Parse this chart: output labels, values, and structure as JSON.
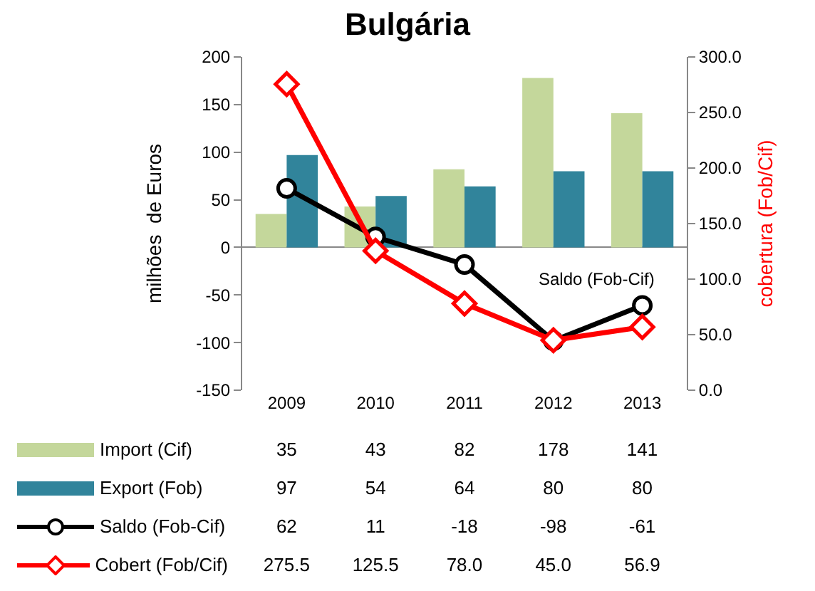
{
  "chart_data": {
    "type": "bar",
    "title": "Bulgária",
    "ylabel": "milhões  de Euros",
    "y2label": "cobertura (Fob/Cif)",
    "categories": [
      "2009",
      "2010",
      "2011",
      "2012",
      "2013"
    ],
    "series": [
      {
        "name": "Import (Cif)",
        "color": "#c4d79b",
        "values": [
          35,
          43,
          82,
          178,
          141
        ],
        "value_labels": [
          "35",
          "43",
          "82",
          "178",
          "141"
        ]
      },
      {
        "name": "Export (Fob)",
        "color": "#31849b",
        "values": [
          97,
          54,
          64,
          80,
          80
        ],
        "value_labels": [
          "97",
          "54",
          "64",
          "80",
          "80"
        ]
      },
      {
        "name": "Saldo (Fob-Cif)",
        "type": "line",
        "color": "#000000",
        "marker": "circle",
        "values": [
          62,
          11,
          -18,
          -98,
          -61
        ],
        "value_labels": [
          "62",
          "11",
          "-18",
          "-98",
          "-61"
        ]
      },
      {
        "name": "Cobert (Fob/Cif)",
        "type": "line",
        "axis": "y2",
        "color": "#ff0000",
        "marker": "diamond",
        "values": [
          275.5,
          125.5,
          78.0,
          45.0,
          56.9
        ],
        "value_labels": [
          "275.5",
          "125.5",
          "78.0",
          "45.0",
          "56.9"
        ]
      }
    ],
    "ylim": [
      -150,
      200
    ],
    "yticks": [
      -150,
      -100,
      -50,
      0,
      50,
      100,
      150,
      200
    ],
    "y2lim": [
      0,
      300
    ],
    "y2ticks": [
      {
        "value": 0,
        "label": "0.0"
      },
      {
        "value": 50,
        "label": "50.0"
      },
      {
        "value": 100,
        "label": "100.0"
      },
      {
        "value": 150,
        "label": "150.0"
      },
      {
        "value": 200,
        "label": "200.0"
      },
      {
        "value": 250,
        "label": "250.0"
      },
      {
        "value": 300,
        "label": "300.0"
      }
    ],
    "annotations": [
      {
        "text": "Saldo (Fob-Cif)",
        "x": "2013",
        "y": -61
      }
    ],
    "legend": "bottom"
  }
}
